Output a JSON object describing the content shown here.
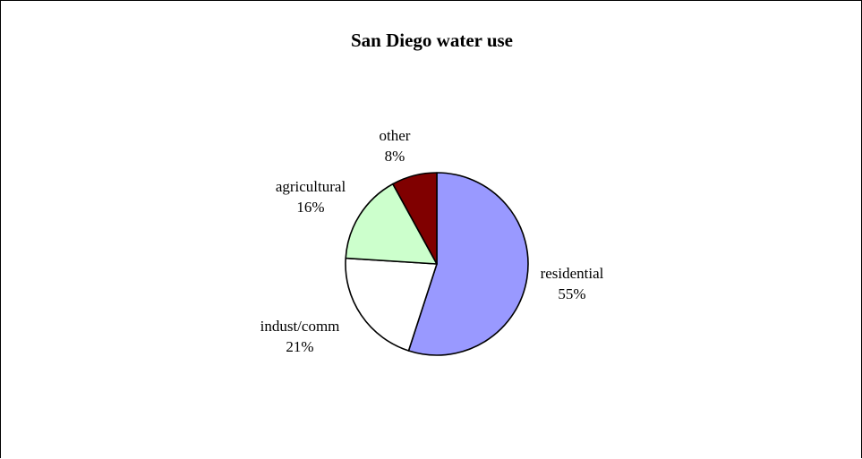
{
  "chart_data": {
    "type": "pie",
    "title": "San Diego water use",
    "slices": [
      {
        "label": "residential",
        "value": 55,
        "display": "55%",
        "color": "#9999ff"
      },
      {
        "label": "indust/comm",
        "value": 21,
        "display": "21%",
        "color": "#ffffff"
      },
      {
        "label": "agricultural",
        "value": 16,
        "display": "16%",
        "color": "#ccffcc"
      },
      {
        "label": "other",
        "value": 8,
        "display": "8%",
        "color": "#800000"
      }
    ]
  }
}
